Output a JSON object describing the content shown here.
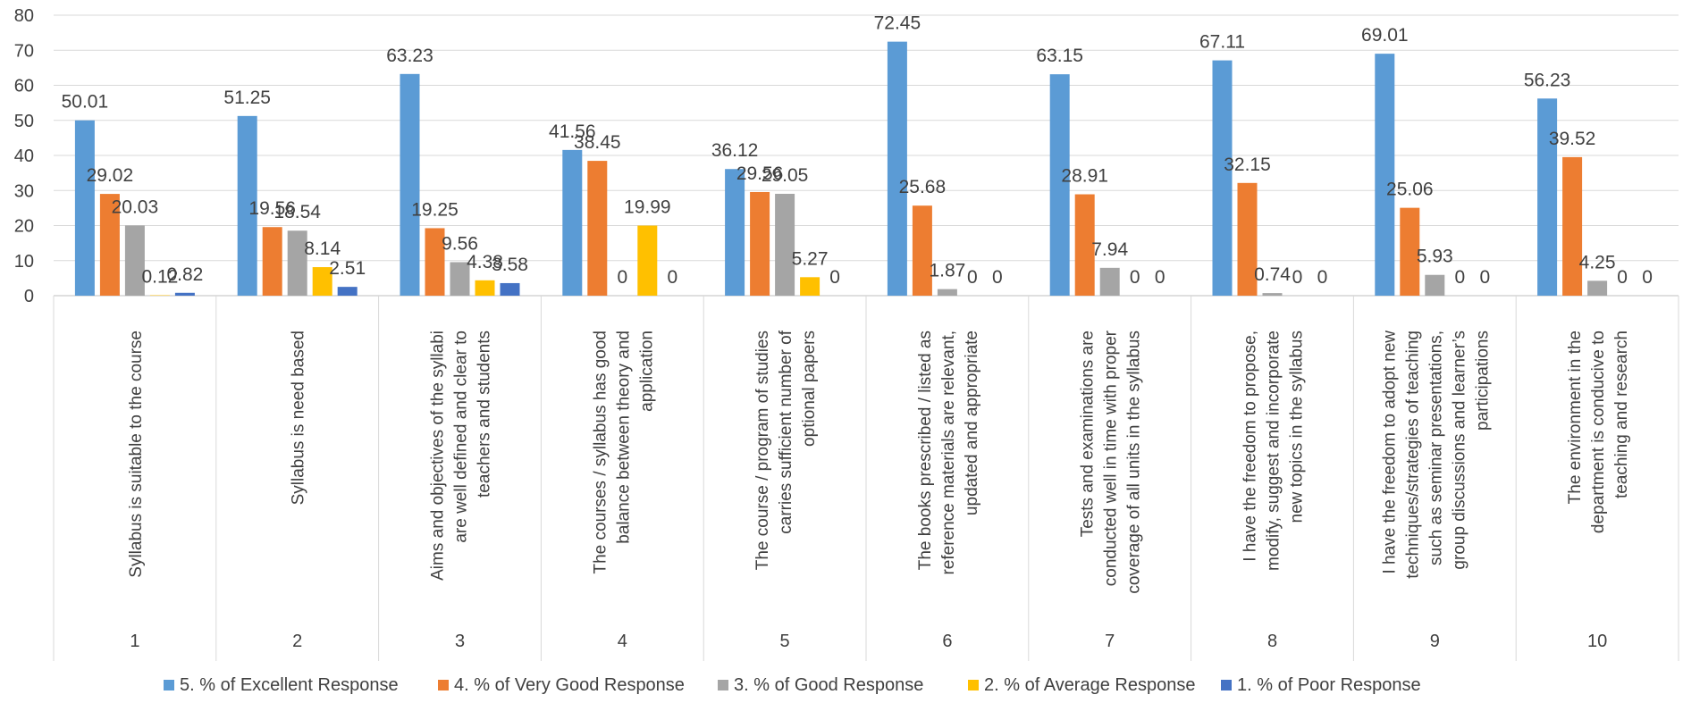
{
  "chart_data": {
    "type": "bar",
    "title": "",
    "xlabel": "",
    "ylabel": "",
    "ylim": [
      0,
      80
    ],
    "yticks": [
      0,
      10,
      20,
      30,
      40,
      50,
      60,
      70,
      80
    ],
    "grid": true,
    "legend_position": "bottom",
    "categories": [
      "1",
      "2",
      "3",
      "4",
      "5",
      "6",
      "7",
      "8",
      "9",
      "10"
    ],
    "category_descriptions": [
      [
        "Syllabus is suitable to the course"
      ],
      [
        "Syllabus is need based"
      ],
      [
        "Aims and objectives of the syllabi",
        "are well defined and clear to",
        "teachers and students"
      ],
      [
        "The courses / syllabus has good",
        "balance between theory and",
        "application"
      ],
      [
        "The course / program of studies",
        "carries sufficient number of",
        "optional papers"
      ],
      [
        "The books prescribed / listed as",
        "reference materials are relevant,",
        "updated and appropriate"
      ],
      [
        "Tests and examinations are",
        "conducted well in time with proper",
        "coverage of all units in the syllabus"
      ],
      [
        "I have the freedom to propose,",
        "modify, suggest and incorporate",
        "new topics in the syllabus"
      ],
      [
        "I have the freedom to adopt new",
        "techniques/strategies of teaching",
        "such as seminar presentations,",
        "group discussions and learner’s",
        "participations"
      ],
      [
        "The environment in the",
        "department is conducive to",
        "teaching and research"
      ]
    ],
    "series": [
      {
        "name": "5. % of Excellent Response",
        "color": "#5B9BD5",
        "values": [
          50.01,
          51.25,
          63.23,
          41.56,
          36.12,
          72.45,
          63.15,
          67.11,
          69.01,
          56.23
        ]
      },
      {
        "name": "4. % of Very Good Response",
        "color": "#ED7D31",
        "values": [
          29.02,
          19.56,
          19.25,
          38.45,
          29.56,
          25.68,
          28.91,
          32.15,
          25.06,
          39.52
        ]
      },
      {
        "name": "3. % of Good Response",
        "color": "#A5A5A5",
        "values": [
          20.03,
          18.54,
          9.56,
          0,
          29.05,
          1.87,
          7.94,
          0.74,
          5.93,
          4.25
        ]
      },
      {
        "name": "2. % of Average Response",
        "color": "#FFC000",
        "values": [
          0.12,
          8.14,
          4.38,
          19.99,
          5.27,
          0,
          0,
          0,
          0,
          0
        ]
      },
      {
        "name": "1. % of Poor Response",
        "color": "#4472C4",
        "values": [
          0.82,
          2.51,
          3.58,
          0,
          0,
          0,
          0,
          0,
          0,
          0
        ]
      }
    ]
  }
}
